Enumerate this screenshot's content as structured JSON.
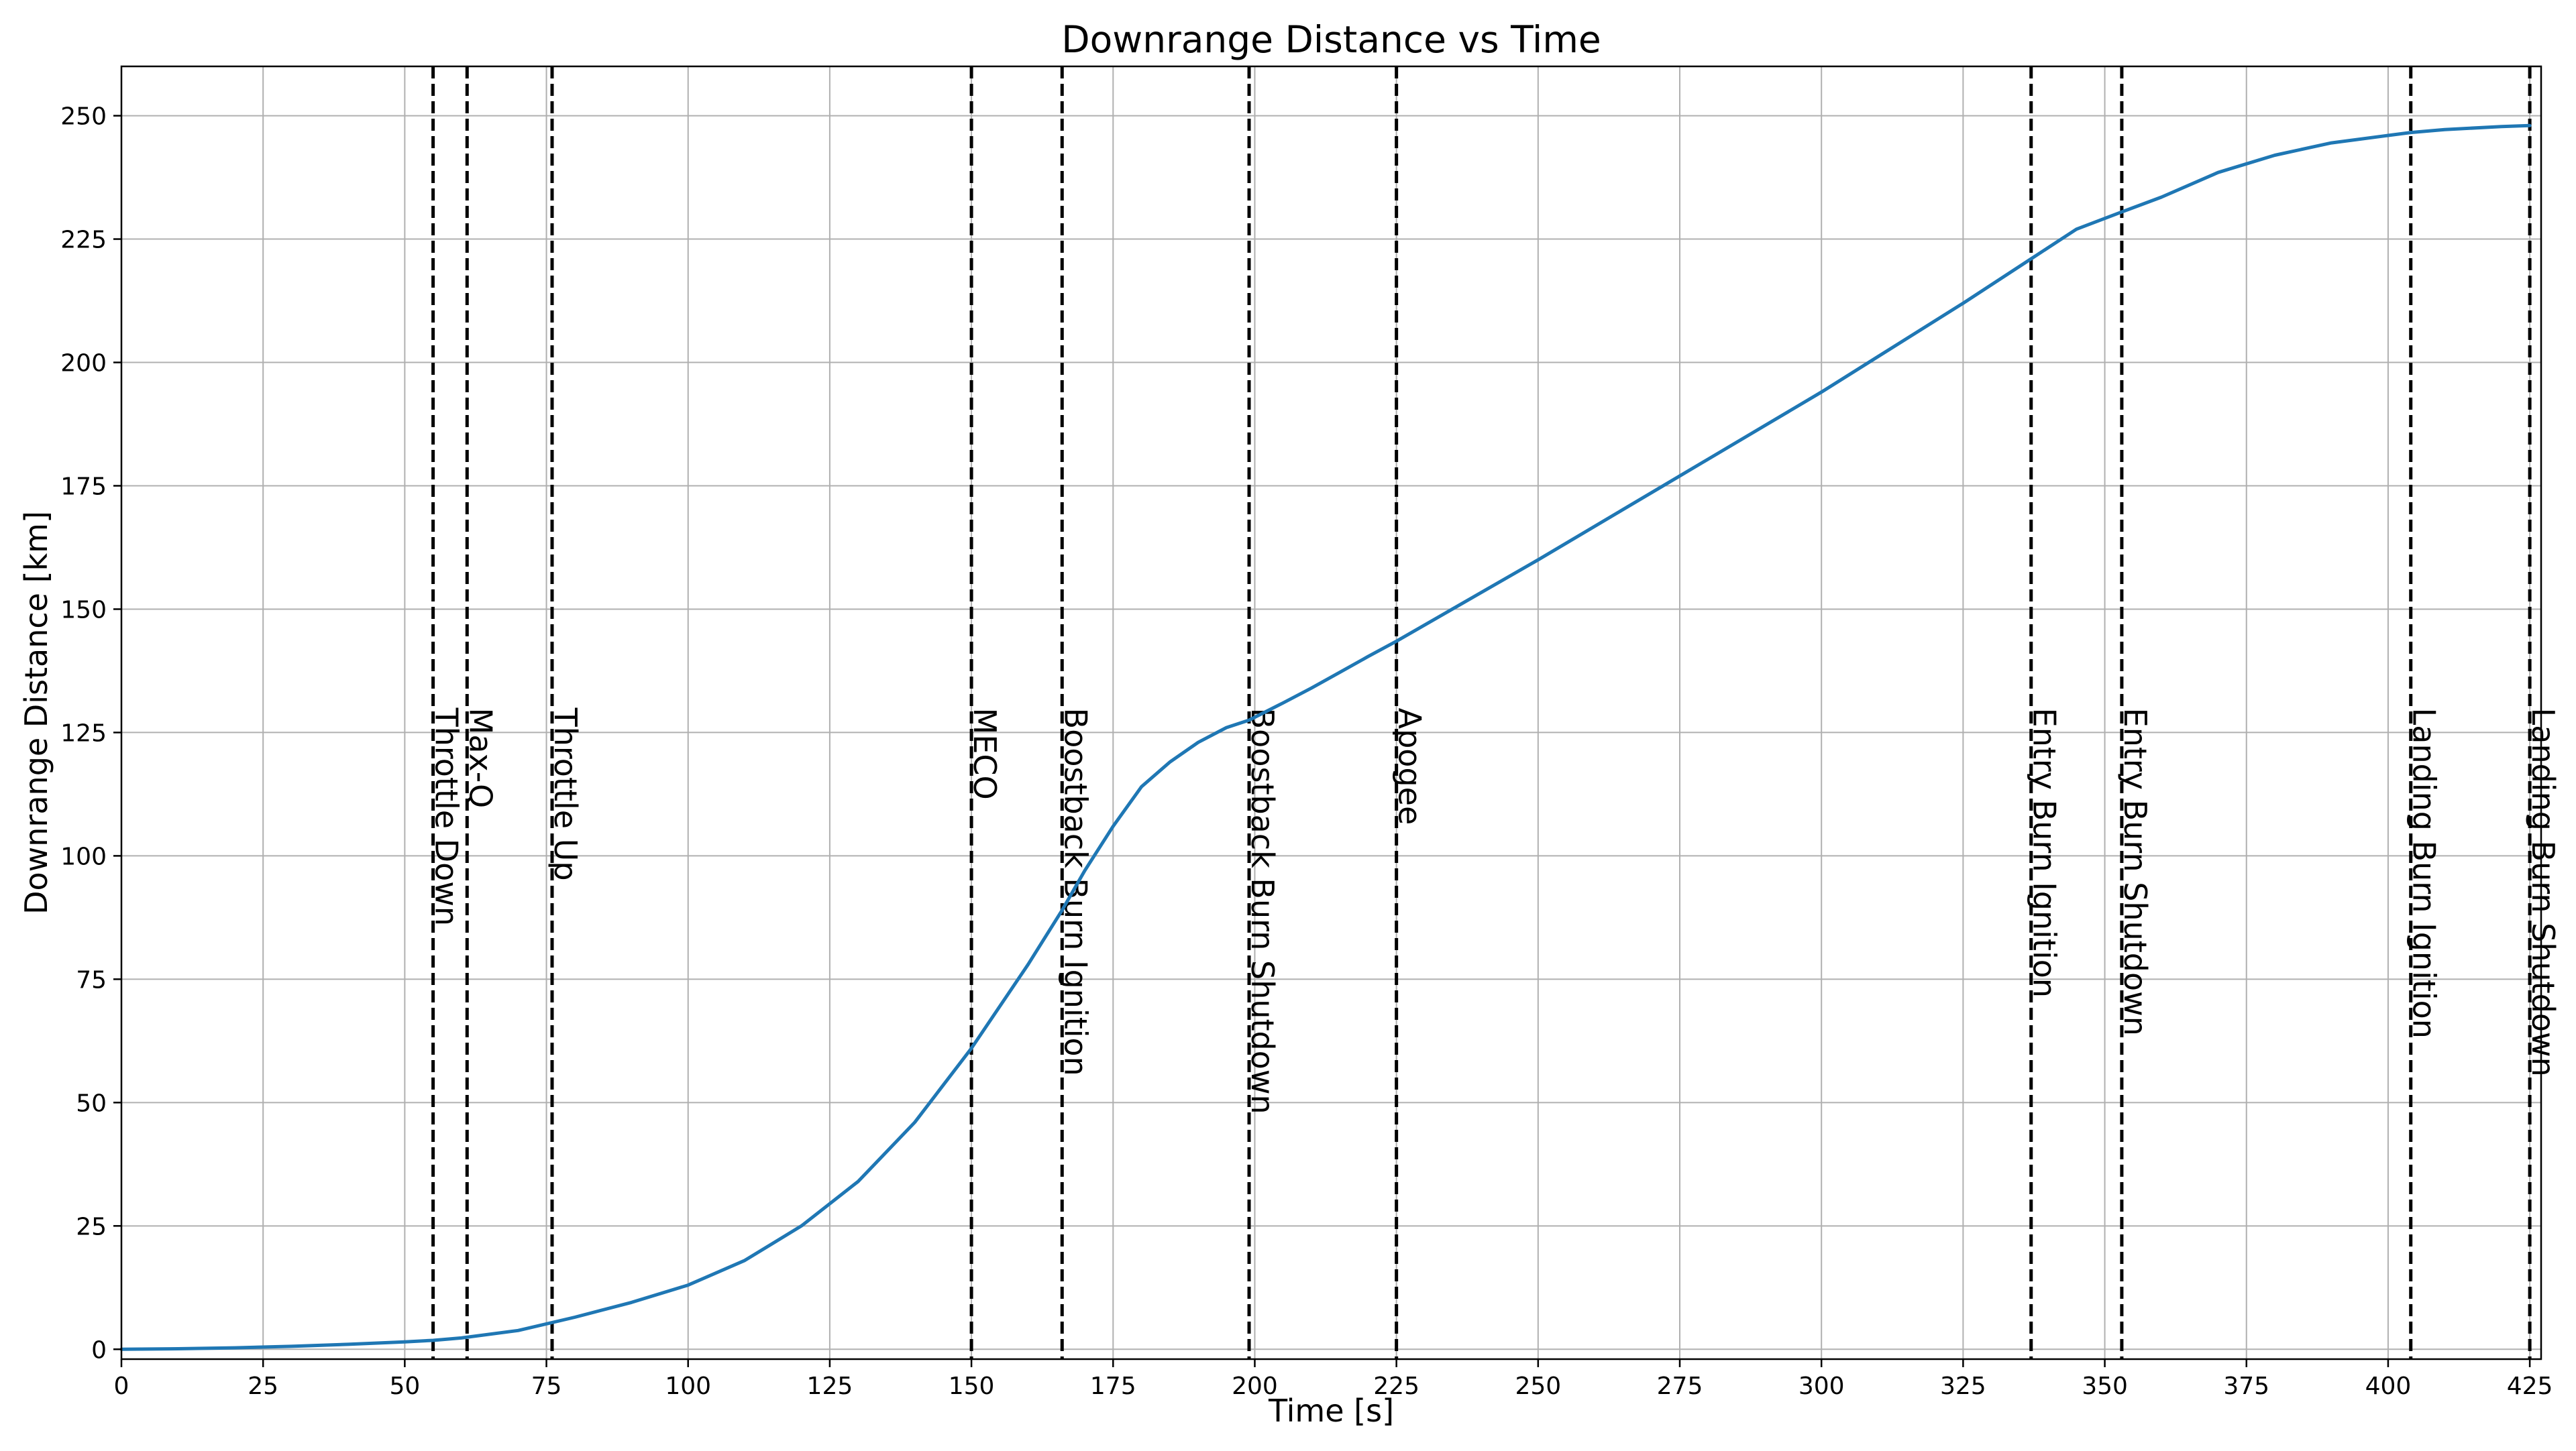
{
  "chart_data": {
    "type": "line",
    "title": "Downrange Distance vs Time",
    "xlabel": "Time [s]",
    "ylabel": "Downrange Distance [km]",
    "xlim": [
      0,
      427
    ],
    "ylim": [
      -2,
      260
    ],
    "x_ticks": [
      0,
      25,
      50,
      75,
      100,
      125,
      150,
      175,
      200,
      225,
      250,
      275,
      300,
      325,
      350,
      375,
      400,
      425
    ],
    "y_ticks": [
      0,
      25,
      50,
      75,
      100,
      125,
      150,
      175,
      200,
      225,
      250
    ],
    "grid": true,
    "legend": "none",
    "line_color": "#1f77b4",
    "series": [
      {
        "x": [
          0,
          10,
          20,
          30,
          40,
          50,
          55,
          60,
          70,
          80,
          90,
          100,
          110,
          120,
          130,
          140,
          150,
          160,
          166,
          170,
          175,
          180,
          185,
          190,
          195,
          199,
          205,
          210,
          215,
          220,
          225,
          250,
          275,
          300,
          325,
          337,
          345,
          353,
          360,
          370,
          380,
          390,
          400,
          404,
          410,
          420,
          425
        ],
        "y": [
          0,
          0.1,
          0.3,
          0.6,
          1.0,
          1.5,
          1.8,
          2.3,
          3.8,
          6.5,
          9.5,
          13,
          18,
          25,
          34,
          46,
          61,
          78,
          89,
          97,
          106,
          114,
          119,
          123,
          126,
          127.5,
          131,
          134,
          137.2,
          140.4,
          143.5,
          160,
          177,
          194,
          212,
          221,
          227,
          230.5,
          233.5,
          238.5,
          242,
          244.5,
          246,
          246.6,
          247.2,
          247.8,
          248
        ]
      }
    ],
    "events": [
      {
        "time": 55,
        "label": "Throttle Down"
      },
      {
        "time": 61,
        "label": "Max-Q"
      },
      {
        "time": 76,
        "label": "Throttle Up"
      },
      {
        "time": 150,
        "label": "MECO"
      },
      {
        "time": 166,
        "label": "Boostback Burn Ignition"
      },
      {
        "time": 199,
        "label": "Boostback Burn Shutdown"
      },
      {
        "time": 225,
        "label": "Apogee"
      },
      {
        "time": 337,
        "label": "Entry Burn Ignition"
      },
      {
        "time": 353,
        "label": "Entry Burn Shutdown"
      },
      {
        "time": 404,
        "label": "Landing Burn Ignition"
      },
      {
        "time": 425,
        "label": "Landing Burn Shutdown"
      }
    ]
  }
}
